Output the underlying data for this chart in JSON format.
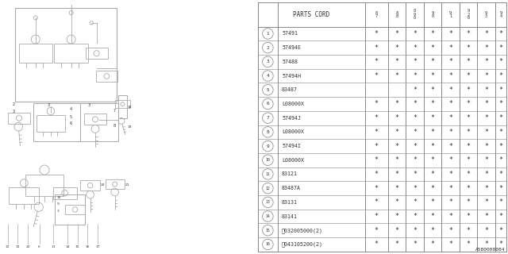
{
  "footer_code": "A580000084",
  "background_color": "#ffffff",
  "rows": [
    {
      "num": "1",
      "part": "57491",
      "stars": [
        1,
        1,
        1,
        1,
        1,
        1,
        1,
        1
      ]
    },
    {
      "num": "2",
      "part": "57494E",
      "stars": [
        1,
        1,
        1,
        1,
        1,
        1,
        1,
        1
      ]
    },
    {
      "num": "3",
      "part": "57488",
      "stars": [
        1,
        1,
        1,
        1,
        1,
        1,
        1,
        1
      ]
    },
    {
      "num": "4",
      "part": "57494H",
      "stars": [
        1,
        1,
        1,
        1,
        1,
        1,
        1,
        1
      ]
    },
    {
      "num": "5",
      "part": "83487",
      "stars": [
        0,
        0,
        1,
        1,
        1,
        1,
        1,
        1
      ]
    },
    {
      "num": "6",
      "part": "L08000X",
      "stars": [
        1,
        1,
        1,
        1,
        1,
        1,
        1,
        1
      ]
    },
    {
      "num": "7",
      "part": "57494J",
      "stars": [
        1,
        1,
        1,
        1,
        1,
        1,
        1,
        1
      ]
    },
    {
      "num": "8",
      "part": "L08000X",
      "stars": [
        1,
        1,
        1,
        1,
        1,
        1,
        1,
        1
      ]
    },
    {
      "num": "9",
      "part": "57494I",
      "stars": [
        1,
        1,
        1,
        1,
        1,
        1,
        1,
        1
      ]
    },
    {
      "num": "10",
      "part": "L08000X",
      "stars": [
        1,
        1,
        1,
        1,
        1,
        1,
        1,
        1
      ]
    },
    {
      "num": "11",
      "part": "83121",
      "stars": [
        1,
        1,
        1,
        1,
        1,
        1,
        1,
        1
      ]
    },
    {
      "num": "12",
      "part": "83487A",
      "stars": [
        1,
        1,
        1,
        1,
        1,
        1,
        1,
        1
      ]
    },
    {
      "num": "13",
      "part": "83131",
      "stars": [
        1,
        1,
        1,
        1,
        1,
        1,
        1,
        1
      ]
    },
    {
      "num": "14",
      "part": "83141",
      "stars": [
        1,
        1,
        1,
        1,
        1,
        1,
        1,
        1
      ]
    },
    {
      "num": "15",
      "part": "Ⓥ032005000(2)",
      "stars": [
        1,
        1,
        1,
        1,
        1,
        1,
        1,
        1
      ]
    },
    {
      "num": "16",
      "part": "Ⓢ043105200(2)",
      "stars": [
        1,
        1,
        1,
        1,
        1,
        1,
        1,
        1
      ]
    }
  ],
  "year_labels": [
    "8\n7",
    "8\n8",
    "8\n9\n0",
    "9\n0",
    "9\n1",
    "9\n2\n0",
    "9\n3",
    "9\n4"
  ],
  "line_color": "#aaaaaa",
  "text_color": "#333333",
  "border_color": "#888888"
}
